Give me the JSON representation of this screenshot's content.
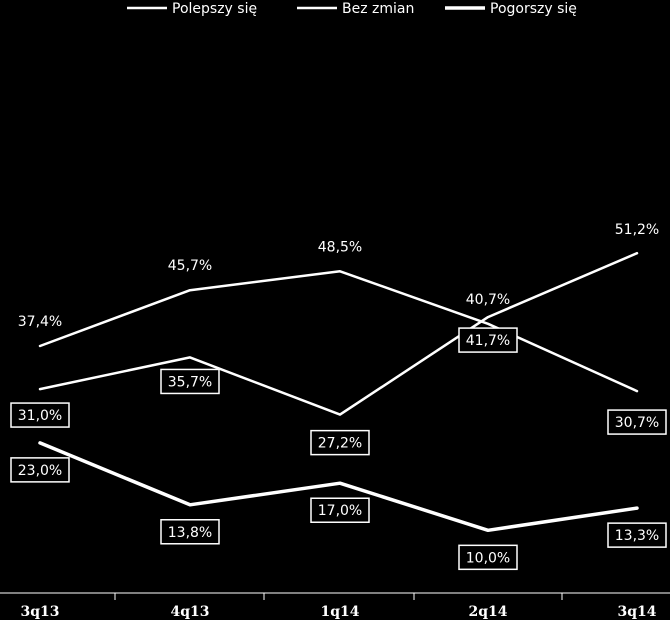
{
  "chart_data": {
    "type": "line",
    "categories": [
      "3q13",
      "4q13",
      "1q14",
      "2q14",
      "3q14"
    ],
    "series": [
      {
        "name": "Polepszy się",
        "values": [
          37.4,
          45.7,
          48.5,
          40.7,
          30.7
        ],
        "labels": [
          "37,4%",
          "45,7%",
          "48,5%",
          "40,7%",
          "30,7%"
        ],
        "boxed": [
          false,
          false,
          false,
          false,
          true
        ]
      },
      {
        "name": "Bez zmian",
        "values": [
          31.0,
          35.7,
          27.2,
          41.7,
          51.2
        ],
        "labels": [
          "31,0%",
          "35,7%",
          "27,2%",
          "41,7%",
          "51,2%"
        ],
        "boxed": [
          true,
          true,
          true,
          true,
          false
        ]
      },
      {
        "name": "Pogorszy się",
        "values": [
          23.0,
          13.8,
          17.0,
          10.0,
          13.3
        ],
        "labels": [
          "23,0%",
          "13,8%",
          "17,0%",
          "10,0%",
          "13,3%"
        ],
        "boxed": [
          true,
          true,
          true,
          true,
          true
        ]
      }
    ],
    "legend_position": "top",
    "colors": {
      "background": "#000000",
      "line": "#ffffff",
      "text": "#ffffff"
    }
  }
}
